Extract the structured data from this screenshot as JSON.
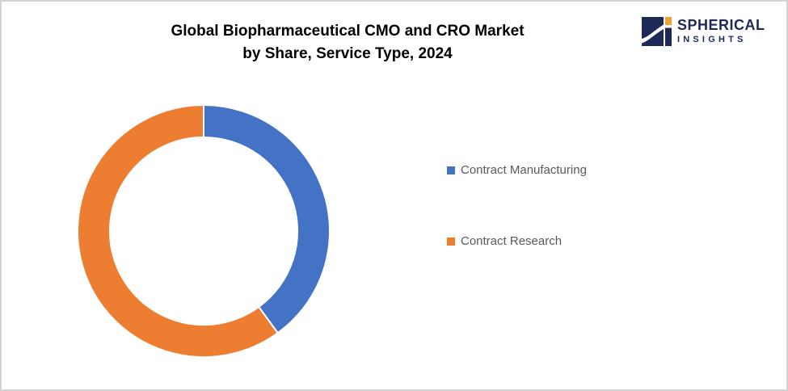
{
  "header": {
    "title_line1": "Global Biopharmaceutical CMO and CRO Market",
    "title_line2": "by Share, Service Type, 2024"
  },
  "logo": {
    "name_top": "SPHERICAL",
    "name_bottom": "INSIGHTS",
    "navy": "#1d2957",
    "orange": "#f0a32f"
  },
  "chart_data": {
    "type": "pie",
    "subtype": "donut",
    "title": "Global Biopharmaceutical CMO and CRO Market by Share, Service Type, 2024",
    "categories": [
      "Contract Manufacturing",
      "Contract Research"
    ],
    "values": [
      40,
      60
    ],
    "colors": [
      "#4472c4",
      "#ed7d31"
    ],
    "start_angle_deg": 0,
    "direction": "clockwise",
    "donut_hole_ratio": 0.744,
    "slice_border_color": "#ffffff",
    "data_labels_shown": false,
    "legend_position": "right"
  },
  "legend": {
    "items": [
      {
        "label": "Contract Manufacturing",
        "color": "#4472c4"
      },
      {
        "label": "Contract Research",
        "color": "#ed7d31"
      }
    ]
  }
}
